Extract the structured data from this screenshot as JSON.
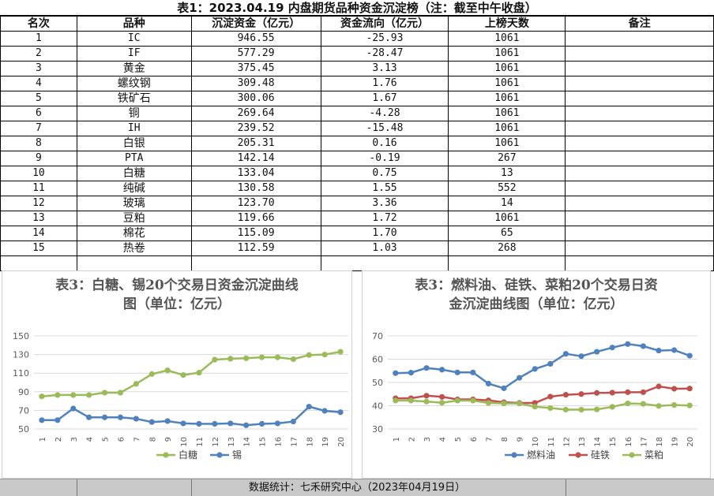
{
  "title": "表1：2023.04.19 内盘期货品种资金沉淀榜（注：截至中午收盘）",
  "table": {
    "headers": [
      "名次",
      "品种",
      "沉淀资金（亿元）",
      "资金流向（亿元）",
      "上榜天数",
      "备注"
    ],
    "rows": [
      [
        "1",
        "IC",
        "946.55",
        "-25.93",
        "1061",
        ""
      ],
      [
        "2",
        "IF",
        "577.29",
        "-28.47",
        "1061",
        ""
      ],
      [
        "3",
        "黄金",
        "375.45",
        "3.13",
        "1061",
        ""
      ],
      [
        "4",
        "螺纹钢",
        "309.48",
        "1.76",
        "1061",
        ""
      ],
      [
        "5",
        "铁矿石",
        "300.06",
        "1.67",
        "1061",
        ""
      ],
      [
        "6",
        "铜",
        "269.64",
        "-4.28",
        "1061",
        ""
      ],
      [
        "7",
        "IH",
        "239.52",
        "-15.48",
        "1061",
        ""
      ],
      [
        "8",
        "白银",
        "205.31",
        "0.16",
        "1061",
        ""
      ],
      [
        "9",
        "PTA",
        "142.14",
        "-0.19",
        "267",
        ""
      ],
      [
        "10",
        "白糖",
        "133.04",
        "0.75",
        "13",
        ""
      ],
      [
        "11",
        "纯碱",
        "130.58",
        "1.55",
        "552",
        ""
      ],
      [
        "12",
        "玻璃",
        "123.70",
        "3.36",
        "14",
        ""
      ],
      [
        "13",
        "豆粕",
        "119.66",
        "1.72",
        "1061",
        ""
      ],
      [
        "14",
        "棉花",
        "115.09",
        "1.70",
        "65",
        ""
      ],
      [
        "15",
        "热卷",
        "112.59",
        "1.03",
        "268",
        ""
      ]
    ]
  },
  "chart_data": [
    {
      "type": "line",
      "title": "表3：白糖、锡20个交易日资金沉淀曲线图（单位：亿元）",
      "title_lines": [
        "表3：白糖、锡20个交易日资金沉淀曲线",
        "图（单位：亿元）"
      ],
      "x": [
        "1",
        "2",
        "3",
        "4",
        "5",
        "6",
        "7",
        "8",
        "9",
        "10",
        "11",
        "12",
        "13",
        "14",
        "15",
        "16",
        "17",
        "18",
        "19",
        "20"
      ],
      "ylim": [
        50,
        150
      ],
      "yticks": [
        50,
        70,
        90,
        110,
        130,
        150
      ],
      "grid": true,
      "legend": "bottom",
      "series": [
        {
          "name": "白糖",
          "color": "#9bbb59",
          "values": [
            85,
            86.5,
            86.5,
            86.5,
            89,
            89,
            98.5,
            109,
            113,
            108,
            110.5,
            124.5,
            125.5,
            126,
            127,
            127,
            125,
            129.5,
            130,
            133
          ]
        },
        {
          "name": "锡",
          "color": "#4f81bd",
          "values": [
            59.5,
            59.5,
            72,
            62.5,
            62.5,
            62.5,
            61,
            57.5,
            58.5,
            56,
            55.5,
            55.5,
            56,
            54,
            55.5,
            56,
            58,
            74,
            69.5,
            68
          ]
        }
      ]
    },
    {
      "type": "line",
      "title": "表3：燃料油、硅铁、菜粕20个交易日资金沉淀曲线图（单位：亿元）",
      "title_lines": [
        "表3：燃料油、硅铁、菜粕20个交易日资",
        "金沉淀曲线图（单位：亿元）"
      ],
      "x": [
        "1",
        "2",
        "3",
        "4",
        "5",
        "6",
        "7",
        "8",
        "9",
        "10",
        "11",
        "12",
        "13",
        "14",
        "15",
        "16",
        "17",
        "18",
        "19",
        "20"
      ],
      "ylim": [
        30,
        70
      ],
      "yticks": [
        30,
        40,
        50,
        60,
        70
      ],
      "grid": true,
      "legend": "bottom",
      "series": [
        {
          "name": "燃料油",
          "color": "#4f81bd",
          "values": [
            54,
            54.2,
            56.2,
            55.5,
            54.3,
            54.3,
            49.5,
            47.5,
            52,
            55.8,
            58,
            62.3,
            61.3,
            63.2,
            65,
            66.5,
            65.6,
            63.7,
            63.9,
            61.5
          ]
        },
        {
          "name": "硅铁",
          "color": "#c0504d",
          "values": [
            43.2,
            43.2,
            44.3,
            43.8,
            42.7,
            42.7,
            42.3,
            41.5,
            41.2,
            41.2,
            43.9,
            44.7,
            45,
            45.5,
            45.6,
            45.8,
            45.8,
            48.3,
            47.3,
            47.4
          ]
        },
        {
          "name": "菜粕",
          "color": "#9bbb59",
          "values": [
            42.2,
            42.2,
            41.8,
            41.3,
            42.2,
            42.2,
            41.2,
            41,
            41,
            39.6,
            39,
            38.3,
            38.3,
            38.4,
            39.5,
            41,
            40.8,
            39.9,
            40.3,
            40.1
          ]
        }
      ]
    }
  ],
  "footer": "数据统计：七禾研究中心（2023年04月19日）"
}
